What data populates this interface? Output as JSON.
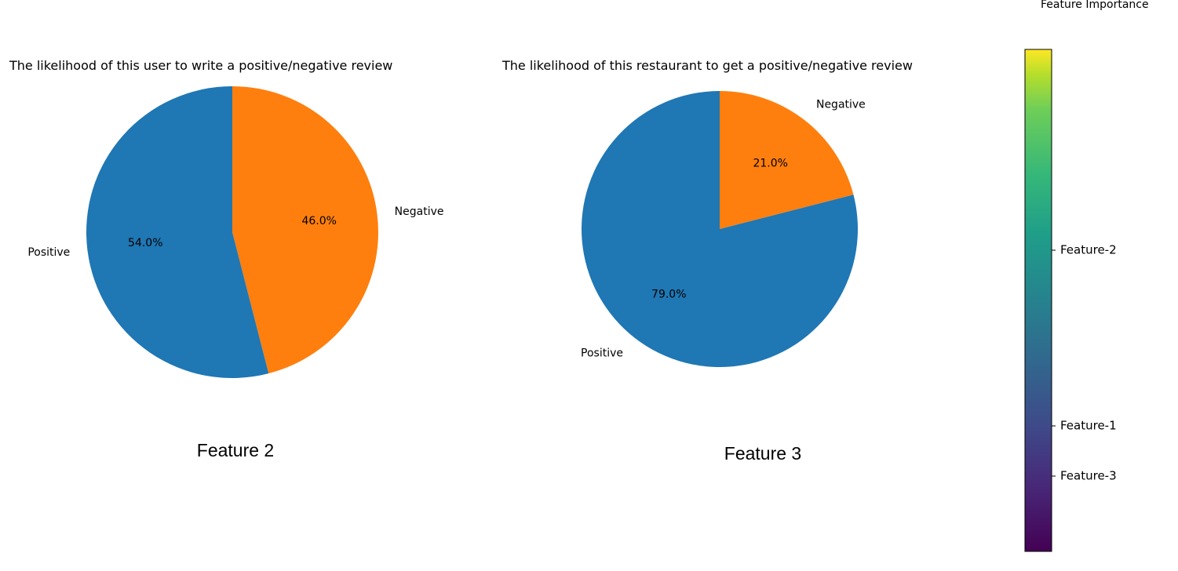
{
  "chart_data": [
    {
      "type": "pie",
      "title": "The likelihood of this user to write a positive/negative review",
      "caption": "Feature 2",
      "slices": [
        {
          "label": "Negative",
          "value": 46.0,
          "pct_text": "46.0%",
          "color": "#ff7f0e"
        },
        {
          "label": "Positive",
          "value": 54.0,
          "pct_text": "54.0%",
          "color": "#1f77b4"
        }
      ]
    },
    {
      "type": "pie",
      "title": "The likelihood of this restaurant to get a positive/negative review",
      "caption": "Feature 3",
      "slices": [
        {
          "label": "Negative",
          "value": 21.0,
          "pct_text": "21.0%",
          "color": "#ff7f0e"
        },
        {
          "label": "Positive",
          "value": 79.0,
          "pct_text": "79.0%",
          "color": "#1f77b4"
        }
      ]
    },
    {
      "type": "colorbar",
      "title": "Feature Importance",
      "colormap": "viridis",
      "ticks": [
        {
          "label": "Feature-2",
          "position": 0.6
        },
        {
          "label": "Feature-1",
          "position": 0.25
        },
        {
          "label": "Feature-3",
          "position": 0.15
        }
      ]
    }
  ]
}
